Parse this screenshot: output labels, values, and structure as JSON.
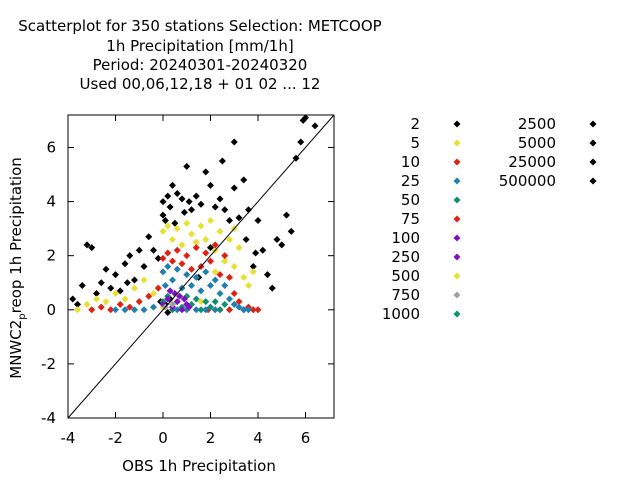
{
  "chart_data": {
    "type": "scatter",
    "title": [
      "Scatterplot for  350 stations Selection: METCOOP",
      "1h Precipitation [mm/1h]",
      "Period: 20240301-20240320",
      "Used  00,06,12,18 + 01 02 ... 12"
    ],
    "xlabel": "OBS 1h Precipitation",
    "ylabel_main": "MNWC2",
    "ylabel_sub": "p",
    "ylabel_rest": "reop 1h Precipitation",
    "xlim": [
      -4,
      7.2
    ],
    "ylim": [
      -4,
      7.2
    ],
    "xticks": [
      -4,
      -2,
      0,
      2,
      4,
      6
    ],
    "yticks": [
      -4,
      -2,
      0,
      2,
      4,
      6
    ],
    "xtick_labels": [
      "-4",
      "-2",
      "0",
      "2",
      "4",
      "6"
    ],
    "ytick_labels": [
      "-4",
      "-2",
      "0",
      "2",
      "4",
      "6"
    ],
    "diagonal": true,
    "legend_placement": "right",
    "legend": [
      {
        "label": "2",
        "color": "#000000"
      },
      {
        "label": "5",
        "color": "#e8e030"
      },
      {
        "label": "10",
        "color": "#e02010"
      },
      {
        "label": "25",
        "color": "#1f7fb0"
      },
      {
        "label": "50",
        "color": "#109070"
      },
      {
        "label": "75",
        "color": "#e02010"
      },
      {
        "label": "100",
        "color": "#8010c0"
      },
      {
        "label": "250",
        "color": "#8010c0"
      },
      {
        "label": "500",
        "color": "#e8e030"
      },
      {
        "label": "750",
        "color": "#a0a0a0"
      },
      {
        "label": "1000",
        "color": "#109070"
      },
      {
        "label": "2500",
        "color": "#000000"
      },
      {
        "label": "5000",
        "color": "#000000"
      },
      {
        "label": "25000",
        "color": "#000000"
      },
      {
        "label": "500000",
        "color": "#000000"
      }
    ],
    "series": [
      {
        "label_index": 0,
        "points": [
          [
            -3.8,
            0.4
          ],
          [
            -3.6,
            0.2
          ],
          [
            -3.4,
            0.9
          ],
          [
            -3.2,
            2.4
          ],
          [
            -3.0,
            2.3
          ],
          [
            -2.8,
            0.6
          ],
          [
            -2.6,
            1.0
          ],
          [
            -2.4,
            1.5
          ],
          [
            -2.2,
            0.8
          ],
          [
            -2.0,
            1.3
          ],
          [
            -1.8,
            0.7
          ],
          [
            -1.6,
            1.7
          ],
          [
            -1.5,
            1.0
          ],
          [
            -1.4,
            2.0
          ],
          [
            -1.2,
            1.1
          ],
          [
            -1.0,
            2.2
          ],
          [
            -0.8,
            1.6
          ],
          [
            -0.6,
            2.7
          ],
          [
            -0.4,
            2.2
          ],
          [
            -0.2,
            1.9
          ],
          [
            0.0,
            3.5
          ],
          [
            0.0,
            4.0
          ],
          [
            0.1,
            3.3
          ],
          [
            0.2,
            4.2
          ],
          [
            0.3,
            3.8
          ],
          [
            0.4,
            4.6
          ],
          [
            0.5,
            3.2
          ],
          [
            0.6,
            4.3
          ],
          [
            0.8,
            4.1
          ],
          [
            0.9,
            3.6
          ],
          [
            1.0,
            5.3
          ],
          [
            1.1,
            4.0
          ],
          [
            1.2,
            3.7
          ],
          [
            1.4,
            4.2
          ],
          [
            1.6,
            3.9
          ],
          [
            1.8,
            5.1
          ],
          [
            2.0,
            4.6
          ],
          [
            2.2,
            3.8
          ],
          [
            2.4,
            4.1
          ],
          [
            2.5,
            5.5
          ],
          [
            2.6,
            3.7
          ],
          [
            2.8,
            3.3
          ],
          [
            3.0,
            4.5
          ],
          [
            3.0,
            6.2
          ],
          [
            3.2,
            3.4
          ],
          [
            3.4,
            4.8
          ],
          [
            3.5,
            2.6
          ],
          [
            3.6,
            3.7
          ],
          [
            3.8,
            1.6
          ],
          [
            3.9,
            2.1
          ],
          [
            4.0,
            3.3
          ],
          [
            4.2,
            2.2
          ],
          [
            4.4,
            1.3
          ],
          [
            4.6,
            0.8
          ],
          [
            4.8,
            2.6
          ],
          [
            5.0,
            2.4
          ],
          [
            5.2,
            3.5
          ],
          [
            5.4,
            2.9
          ],
          [
            5.6,
            5.6
          ],
          [
            5.8,
            6.2
          ],
          [
            5.9,
            7.0
          ],
          [
            6.0,
            7.1
          ],
          [
            6.4,
            6.8
          ],
          [
            2.0,
            2.3
          ],
          [
            1.5,
            1.2
          ],
          [
            0.3,
            0.4
          ],
          [
            0.1,
            0.2
          ],
          [
            -0.1,
            0.3
          ],
          [
            0.2,
            -0.1
          ]
        ]
      },
      {
        "label_index": 1,
        "points": [
          [
            -3.6,
            0.0
          ],
          [
            -3.2,
            0.2
          ],
          [
            -2.8,
            0.4
          ],
          [
            -2.4,
            0.3
          ],
          [
            -2.0,
            0.6
          ],
          [
            -1.6,
            0.4
          ],
          [
            -1.2,
            0.8
          ],
          [
            -0.8,
            1.1
          ],
          [
            -0.4,
            0.6
          ],
          [
            0.0,
            2.9
          ],
          [
            0.2,
            3.1
          ],
          [
            0.4,
            2.6
          ],
          [
            0.6,
            3.0
          ],
          [
            0.8,
            2.4
          ],
          [
            1.0,
            3.2
          ],
          [
            1.2,
            2.8
          ],
          [
            1.4,
            2.5
          ],
          [
            1.6,
            3.1
          ],
          [
            1.8,
            2.6
          ],
          [
            2.0,
            3.3
          ],
          [
            2.2,
            2.2
          ],
          [
            2.4,
            2.9
          ],
          [
            2.6,
            1.8
          ],
          [
            2.8,
            2.6
          ],
          [
            3.0,
            1.6
          ],
          [
            3.2,
            2.3
          ],
          [
            3.4,
            1.2
          ],
          [
            3.6,
            0.9
          ],
          [
            3.8,
            1.4
          ],
          [
            3.0,
            3.0
          ],
          [
            2.2,
            1.4
          ],
          [
            0.0,
            0.1
          ],
          [
            1.6,
            0.3
          ]
        ]
      },
      {
        "label_index": 2,
        "points": [
          [
            -3.0,
            0.0
          ],
          [
            -2.6,
            0.1
          ],
          [
            -2.2,
            0.0
          ],
          [
            -1.8,
            0.2
          ],
          [
            -1.4,
            0.1
          ],
          [
            -1.0,
            0.3
          ],
          [
            -0.6,
            0.5
          ],
          [
            -0.2,
            0.8
          ],
          [
            0.0,
            1.9
          ],
          [
            0.2,
            2.1
          ],
          [
            0.4,
            1.8
          ],
          [
            0.6,
            2.2
          ],
          [
            0.8,
            1.7
          ],
          [
            1.0,
            2.0
          ],
          [
            1.2,
            1.5
          ],
          [
            1.4,
            2.3
          ],
          [
            1.6,
            1.6
          ],
          [
            1.8,
            2.1
          ],
          [
            2.0,
            1.8
          ],
          [
            2.2,
            2.4
          ],
          [
            2.4,
            1.3
          ],
          [
            2.6,
            2.0
          ],
          [
            2.8,
            1.2
          ],
          [
            3.0,
            0.6
          ],
          [
            3.2,
            0.3
          ],
          [
            3.4,
            0.0
          ],
          [
            3.6,
            0.1
          ],
          [
            3.8,
            0.0
          ],
          [
            4.0,
            0.0
          ],
          [
            2.8,
            0.0
          ],
          [
            2.4,
            0.0
          ],
          [
            1.9,
            0.0
          ]
        ]
      },
      {
        "label_index": 3,
        "points": [
          [
            -2.0,
            0.0
          ],
          [
            -1.6,
            0.0
          ],
          [
            -1.2,
            0.0
          ],
          [
            -0.8,
            0.0
          ],
          [
            -0.4,
            0.1
          ],
          [
            0.0,
            1.4
          ],
          [
            0.1,
            0.9
          ],
          [
            0.2,
            1.6
          ],
          [
            0.4,
            1.1
          ],
          [
            0.6,
            1.5
          ],
          [
            0.8,
            0.8
          ],
          [
            1.0,
            1.3
          ],
          [
            1.2,
            0.9
          ],
          [
            1.4,
            1.2
          ],
          [
            1.6,
            0.7
          ],
          [
            1.8,
            1.4
          ],
          [
            2.0,
            0.9
          ],
          [
            2.2,
            1.1
          ],
          [
            2.4,
            0.6
          ],
          [
            2.6,
            0.9
          ],
          [
            2.8,
            0.4
          ],
          [
            3.0,
            0.2
          ],
          [
            3.2,
            0.1
          ],
          [
            3.4,
            0.0
          ],
          [
            3.6,
            0.0
          ],
          [
            1.0,
            0.0
          ],
          [
            1.4,
            0.0
          ],
          [
            1.8,
            0.0
          ],
          [
            2.2,
            0.0
          ],
          [
            0.6,
            0.0
          ]
        ]
      },
      {
        "label_index": 4,
        "points": [
          [
            0.0,
            0.3
          ],
          [
            0.2,
            0.5
          ],
          [
            0.4,
            0.0
          ],
          [
            0.6,
            0.3
          ],
          [
            0.8,
            0.1
          ],
          [
            1.0,
            0.5
          ],
          [
            1.2,
            0.2
          ],
          [
            1.4,
            0.4
          ],
          [
            1.6,
            0.0
          ],
          [
            1.8,
            0.3
          ],
          [
            2.0,
            0.1
          ],
          [
            2.2,
            0.3
          ],
          [
            2.4,
            0.0
          ],
          [
            2.6,
            0.2
          ]
        ]
      },
      {
        "label_index": 6,
        "points": [
          [
            0.0,
            0.2
          ],
          [
            0.2,
            0.4
          ],
          [
            0.3,
            0.7
          ],
          [
            0.4,
            0.1
          ],
          [
            0.5,
            0.6
          ],
          [
            0.6,
            0.3
          ],
          [
            0.7,
            0.5
          ],
          [
            0.8,
            0.0
          ],
          [
            0.9,
            0.4
          ],
          [
            1.0,
            0.2
          ],
          [
            1.1,
            0.1
          ]
        ]
      },
      {
        "label_index": 9,
        "points": [
          [
            0.1,
            0.1
          ],
          [
            0.4,
            0.2
          ]
        ]
      }
    ]
  }
}
